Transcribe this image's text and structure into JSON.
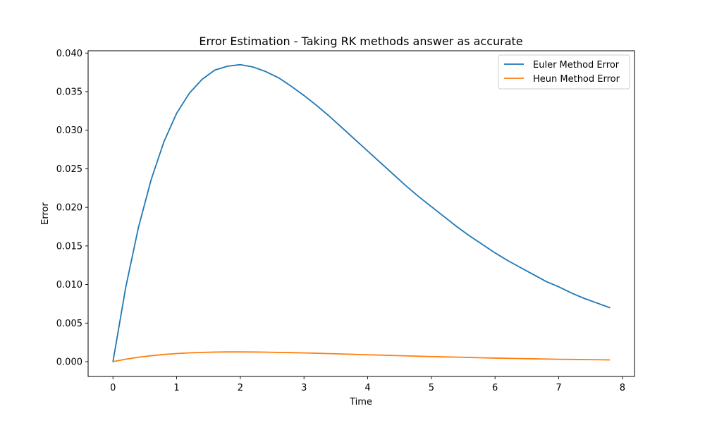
{
  "chart_data": {
    "type": "line",
    "title": "Error Estimation - Taking RK methods answer as accurate",
    "xlabel": "Time",
    "ylabel": "Error",
    "xlim": [
      -0.39,
      8.19
    ],
    "ylim": [
      -0.00192,
      0.0403
    ],
    "xticks": [
      0,
      1,
      2,
      3,
      4,
      5,
      6,
      7,
      8
    ],
    "xtick_labels": [
      "0",
      "1",
      "2",
      "3",
      "4",
      "5",
      "6",
      "7",
      "8"
    ],
    "yticks": [
      0,
      0.005,
      0.01,
      0.015,
      0.02,
      0.025,
      0.03,
      0.035,
      0.04
    ],
    "ytick_labels": [
      "0.000",
      "0.005",
      "0.010",
      "0.015",
      "0.020",
      "0.025",
      "0.030",
      "0.035",
      "0.040"
    ],
    "grid": false,
    "legend_position": "top-right",
    "x": [
      0,
      0.2,
      0.4,
      0.6,
      0.8,
      1.0,
      1.2,
      1.4,
      1.6,
      1.8,
      2.0,
      2.2,
      2.4,
      2.6,
      2.8,
      3.0,
      3.2,
      3.4,
      3.6,
      3.8,
      4.0,
      4.2,
      4.4,
      4.6,
      4.8,
      5.0,
      5.2,
      5.4,
      5.6,
      5.8,
      6.0,
      6.2,
      6.4,
      6.6,
      6.8,
      7.0,
      7.2,
      7.4,
      7.6,
      7.8
    ],
    "series": [
      {
        "name": "Euler Method Error",
        "color": "#1f77b4",
        "values": [
          0,
          0.0096,
          0.0174,
          0.0236,
          0.0285,
          0.0322,
          0.0348,
          0.0366,
          0.0378,
          0.0383,
          0.0385,
          0.0382,
          0.0376,
          0.0368,
          0.0357,
          0.0345,
          0.0332,
          0.0318,
          0.0303,
          0.0288,
          0.0273,
          0.0258,
          0.0243,
          0.0228,
          0.0214,
          0.0201,
          0.0188,
          0.0175,
          0.0163,
          0.0152,
          0.0141,
          0.0131,
          0.0122,
          0.0113,
          0.0104,
          0.0097,
          0.0089,
          0.0082,
          0.0076,
          0.007
        ]
      },
      {
        "name": "Heun Method Error",
        "color": "#ff7f0e",
        "values": [
          0,
          0.00032,
          0.00057,
          0.00077,
          0.00093,
          0.00105,
          0.00114,
          0.0012,
          0.00124,
          0.00126,
          0.00126,
          0.00125,
          0.00123,
          0.0012,
          0.00117,
          0.00113,
          0.00109,
          0.00104,
          0.00099,
          0.00094,
          0.00089,
          0.00085,
          0.0008,
          0.00075,
          0.0007,
          0.00066,
          0.00062,
          0.00058,
          0.00054,
          0.0005,
          0.00046,
          0.00043,
          0.0004,
          0.00037,
          0.00034,
          0.00031,
          0.00029,
          0.00027,
          0.00025,
          0.00023
        ]
      }
    ]
  }
}
